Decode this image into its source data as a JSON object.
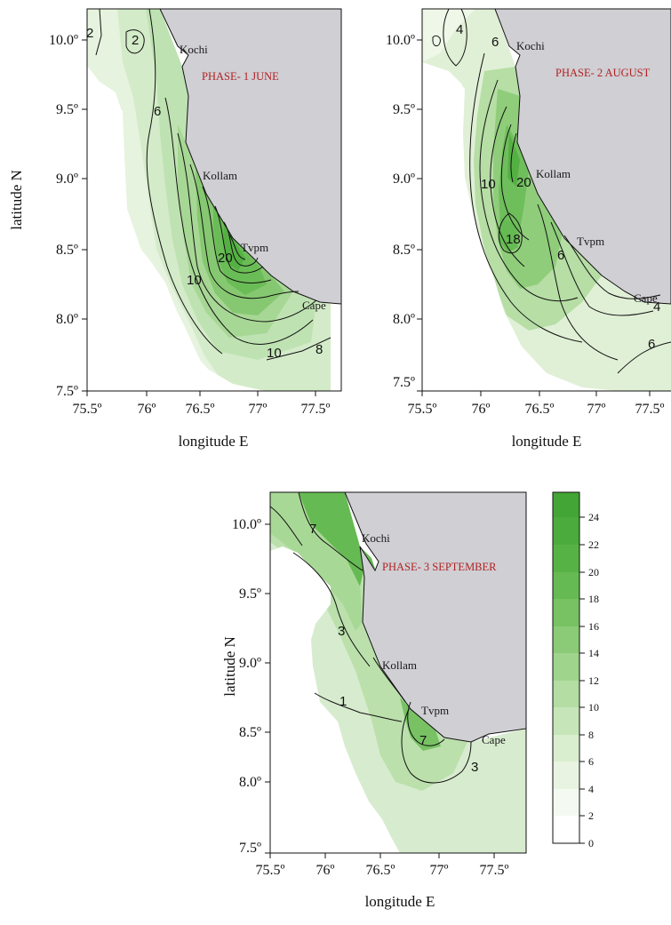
{
  "panels": [
    {
      "phase": "PHASE- 1  JUNE",
      "ylabel": "latitude N",
      "xlabel": "longitude E",
      "yticks": [
        "10.0º",
        "9.5º",
        "9.0º",
        "8.5º",
        "8.0º",
        "7.5º"
      ],
      "xticks": [
        "75.5º",
        "76º",
        "76.5º",
        "77º",
        "77.5º"
      ],
      "cities": [
        "Kochi",
        "Kollam",
        "Tvpm",
        "Cape"
      ],
      "contour_labels": [
        "2",
        "2",
        "6",
        "10",
        "20",
        "10",
        "8"
      ]
    },
    {
      "phase": "PHASE- 2  AUGUST",
      "ylabel": "",
      "xlabel": "longitude E",
      "yticks": [
        "10.0º",
        "9.5º",
        "9.0º",
        "8.5º",
        "8.0º",
        "7.5º"
      ],
      "xticks": [
        "75.5º",
        "76º",
        "76.5º",
        "77º",
        "77.5º"
      ],
      "cities": [
        "Kochi",
        "Kollam",
        "Tvpm",
        "Cape"
      ],
      "contour_labels": [
        "4",
        "6",
        "10",
        "20",
        "18",
        "6",
        "4",
        "6"
      ]
    },
    {
      "phase": "PHASE- 3 SEPTEMBER",
      "ylabel": "latitude N",
      "xlabel": "longitude E",
      "yticks": [
        "10.0º",
        "9.5º",
        "9.0º",
        "8.5º",
        "8.0º",
        "7.5º"
      ],
      "xticks": [
        "75.5º",
        "76º",
        "76.5º",
        "77º",
        "77.5º"
      ],
      "cities": [
        "Kochi",
        "Kollam",
        "Tvpm",
        "Cape"
      ],
      "contour_labels": [
        "7",
        "3",
        "1",
        "7",
        "3"
      ]
    }
  ],
  "colorbar": {
    "ticks": [
      "24",
      "22",
      "20",
      "18",
      "16",
      "14",
      "12",
      "10",
      "8",
      "6",
      "4",
      "2",
      "0"
    ],
    "colors": {
      "c0": "#ffffff",
      "c2": "#f4faf1",
      "c4": "#e8f4e1",
      "c6": "#d9eecf",
      "c8": "#c6e6ba",
      "c10": "#b3dda3",
      "c12": "#9fd48c",
      "c14": "#8bcb77",
      "c16": "#78c264",
      "c18": "#66ba53",
      "c20": "#57b246",
      "c22": "#4cab3d",
      "c24": "#43a535"
    }
  },
  "colors": {
    "land": "#cfcfd4",
    "phase_text": "#b22222"
  }
}
